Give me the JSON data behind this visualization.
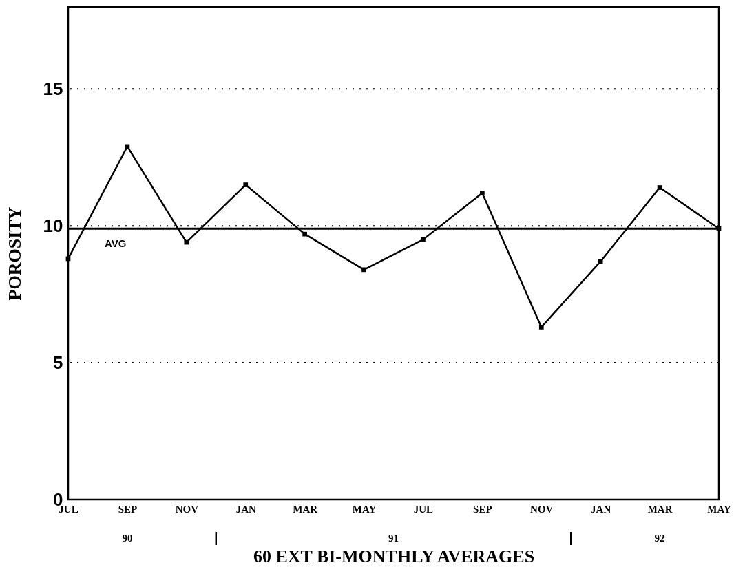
{
  "chart_data": {
    "type": "line",
    "xlabel": "60 EXT BI-MONTHLY AVERAGES",
    "ylabel": "POROSITY",
    "categories": [
      "JUL",
      "SEP",
      "NOV",
      "JAN",
      "MAR",
      "MAY",
      "JUL",
      "SEP",
      "NOV",
      "JAN",
      "MAR",
      "MAY"
    ],
    "values": [
      8.8,
      12.9,
      9.4,
      11.5,
      9.7,
      8.4,
      9.5,
      11.2,
      6.3,
      8.7,
      11.4,
      9.9
    ],
    "color": "#000000",
    "marker": "square",
    "ylim": [
      0,
      18
    ],
    "yticks": [
      0,
      5,
      10,
      15
    ],
    "grid": "y",
    "ref_lines": [
      {
        "axis": "y",
        "value": 9.9,
        "label": "AVG"
      }
    ],
    "annotations": [
      "90",
      "91",
      "92"
    ]
  }
}
